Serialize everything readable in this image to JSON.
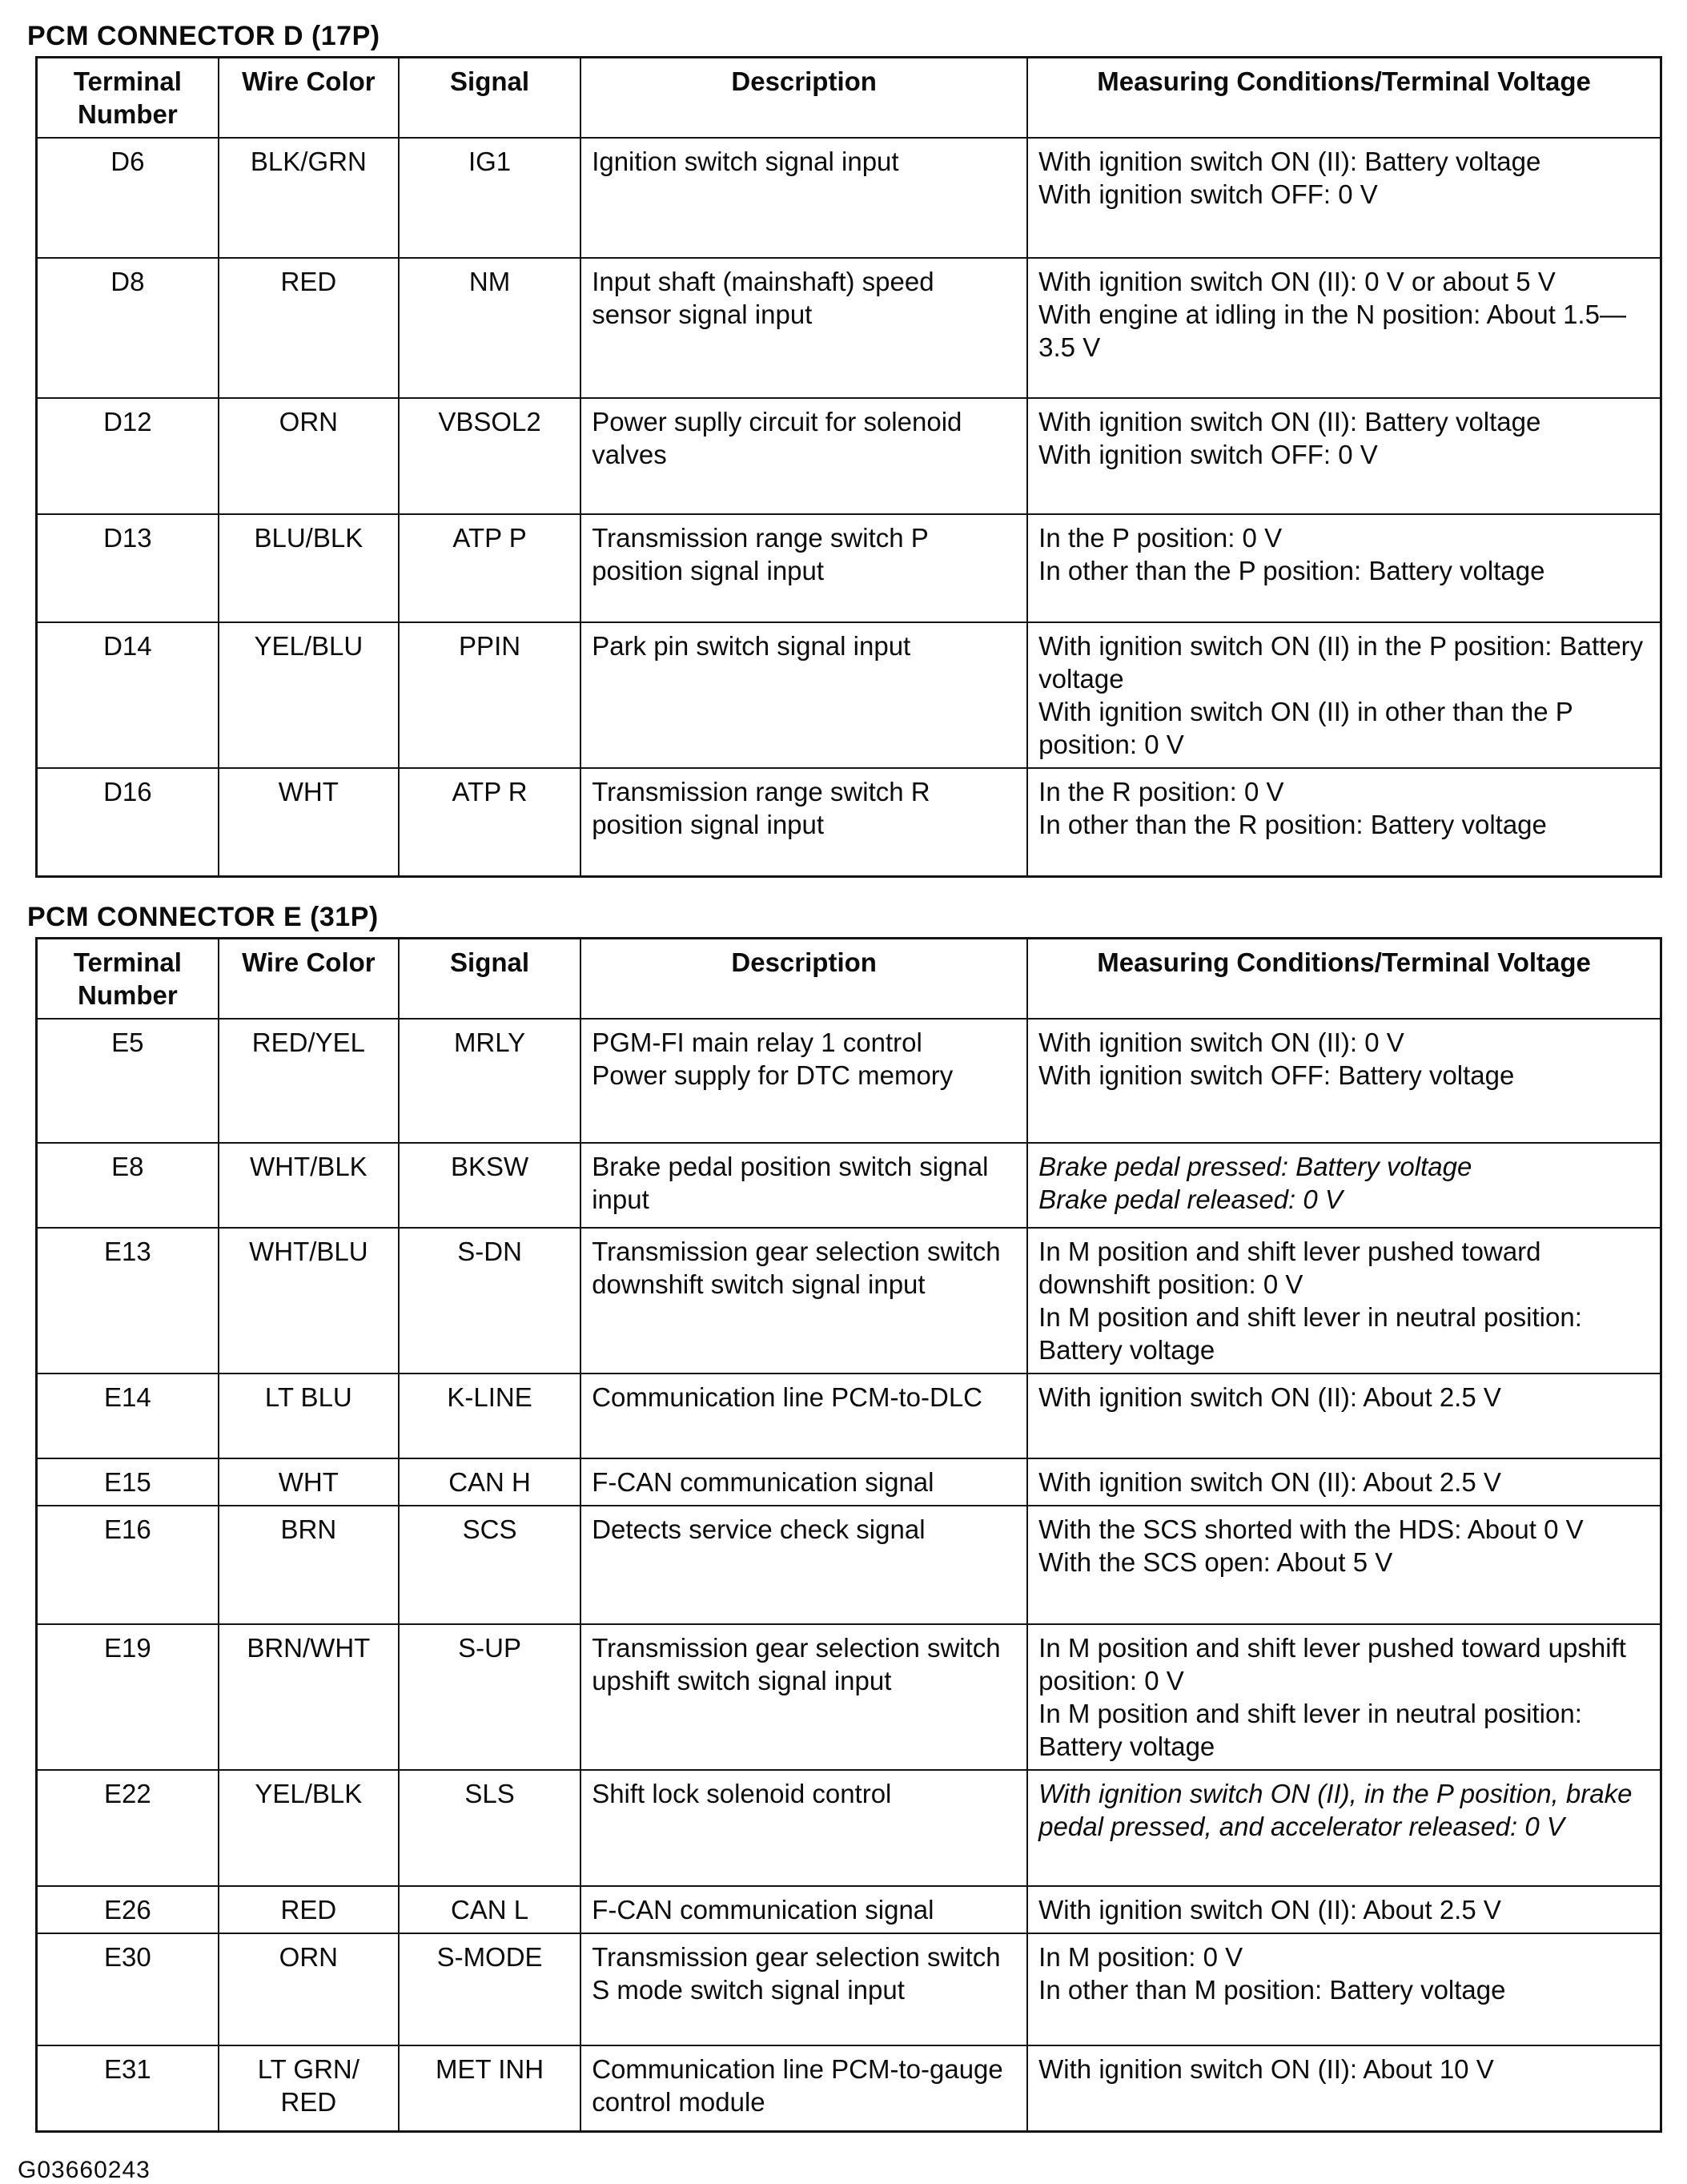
{
  "document": {
    "footer_code": "G03660243"
  },
  "tables": [
    {
      "title": "PCM CONNECTOR D (17P)",
      "columns": [
        "Terminal Number",
        "Wire Color",
        "Signal",
        "Description",
        "Measuring Conditions/Terminal Voltage"
      ],
      "rows": [
        {
          "terminal": "D6",
          "wire_color": "BLK/GRN",
          "signal": "IG1",
          "description": "Ignition switch signal input",
          "conditions": "With ignition switch ON (II): Battery voltage\nWith ignition switch OFF: 0 V",
          "conditions_italic": false
        },
        {
          "terminal": "D8",
          "wire_color": "RED",
          "signal": "NM",
          "description": "Input shaft (mainshaft) speed sensor signal input",
          "conditions": "With ignition switch ON (II): 0 V or about 5 V\nWith engine at idling in the N position: About 1.5—3.5 V",
          "conditions_italic": false
        },
        {
          "terminal": "D12",
          "wire_color": "ORN",
          "signal": "VBSOL2",
          "description": "Power suplly circuit for solenoid valves",
          "conditions": "With ignition switch ON (II): Battery voltage\nWith ignition switch OFF: 0 V",
          "conditions_italic": false
        },
        {
          "terminal": "D13",
          "wire_color": "BLU/BLK",
          "signal": "ATP P",
          "description": "Transmission range switch P position signal input",
          "conditions": "In the P position: 0 V\nIn other than the P position: Battery voltage",
          "conditions_italic": false
        },
        {
          "terminal": "D14",
          "wire_color": "YEL/BLU",
          "signal": "PPIN",
          "description": "Park pin switch signal input",
          "conditions": "With ignition switch ON (II) in the P position: Battery voltage\nWith ignition switch ON (II) in other than the P position: 0 V",
          "conditions_italic": false
        },
        {
          "terminal": "D16",
          "wire_color": "WHT",
          "signal": "ATP R",
          "description": "Transmission range switch R position signal input",
          "conditions": "In the R position: 0 V\nIn other than the R position: Battery voltage",
          "conditions_italic": false
        }
      ]
    },
    {
      "title": "PCM CONNECTOR E (31P)",
      "columns": [
        "Terminal Number",
        "Wire Color",
        "Signal",
        "Description",
        "Measuring Conditions/Terminal Voltage"
      ],
      "rows": [
        {
          "terminal": "E5",
          "wire_color": "RED/YEL",
          "signal": "MRLY",
          "description": "PGM-FI main relay 1 control\nPower supply for DTC memory",
          "conditions": "With ignition switch ON (II): 0 V\nWith ignition switch OFF: Battery voltage",
          "conditions_italic": false
        },
        {
          "terminal": "E8",
          "wire_color": "WHT/BLK",
          "signal": "BKSW",
          "description": "Brake pedal position switch signal input",
          "conditions": "Brake pedal pressed: Battery voltage\nBrake pedal released: 0 V",
          "conditions_italic": true
        },
        {
          "terminal": "E13",
          "wire_color": "WHT/BLU",
          "signal": "S-DN",
          "description": "Transmission gear selection switch downshift switch signal input",
          "conditions": "In M position and shift lever pushed toward downshift position: 0 V\nIn M position and shift lever in neutral position: Battery voltage",
          "conditions_italic": false
        },
        {
          "terminal": "E14",
          "wire_color": "LT BLU",
          "signal": "K-LINE",
          "description": "Communication line PCM-to-DLC",
          "conditions": "With ignition switch ON (II): About 2.5 V",
          "conditions_italic": false
        },
        {
          "terminal": "E15",
          "wire_color": "WHT",
          "signal": "CAN H",
          "description": "F-CAN communication signal",
          "conditions": "With ignition switch ON (II): About 2.5 V",
          "conditions_italic": false
        },
        {
          "terminal": "E16",
          "wire_color": "BRN",
          "signal": "SCS",
          "description": "Detects service check signal",
          "conditions": "With the SCS shorted with the HDS: About 0 V\nWith the SCS open: About 5 V",
          "conditions_italic": false
        },
        {
          "terminal": "E19",
          "wire_color": "BRN/WHT",
          "signal": "S-UP",
          "description": "Transmission gear selection switch upshift switch signal input",
          "conditions": "In M position and shift lever pushed toward upshift position: 0 V\nIn M position and shift lever in neutral position: Battery voltage",
          "conditions_italic": false
        },
        {
          "terminal": "E22",
          "wire_color": "YEL/BLK",
          "signal": "SLS",
          "description": "Shift lock solenoid control",
          "conditions": "With ignition switch ON (II), in the P position, brake pedal pressed, and accelerator released: 0 V",
          "conditions_italic": true
        },
        {
          "terminal": "E26",
          "wire_color": "RED",
          "signal": "CAN L",
          "description": "F-CAN communication signal",
          "conditions": "With ignition switch ON (II): About 2.5 V",
          "conditions_italic": false
        },
        {
          "terminal": "E30",
          "wire_color": "ORN",
          "signal": "S-MODE",
          "description": "Transmission gear selection switch S mode switch signal input",
          "conditions": "In M position: 0 V\nIn other than M position: Battery voltage",
          "conditions_italic": false
        },
        {
          "terminal": "E31",
          "wire_color": "LT GRN/\nRED",
          "signal": "MET INH",
          "description": "Communication line PCM-to-gauge control module",
          "conditions": "With ignition switch ON (II): About 10 V",
          "conditions_italic": false
        }
      ]
    }
  ]
}
